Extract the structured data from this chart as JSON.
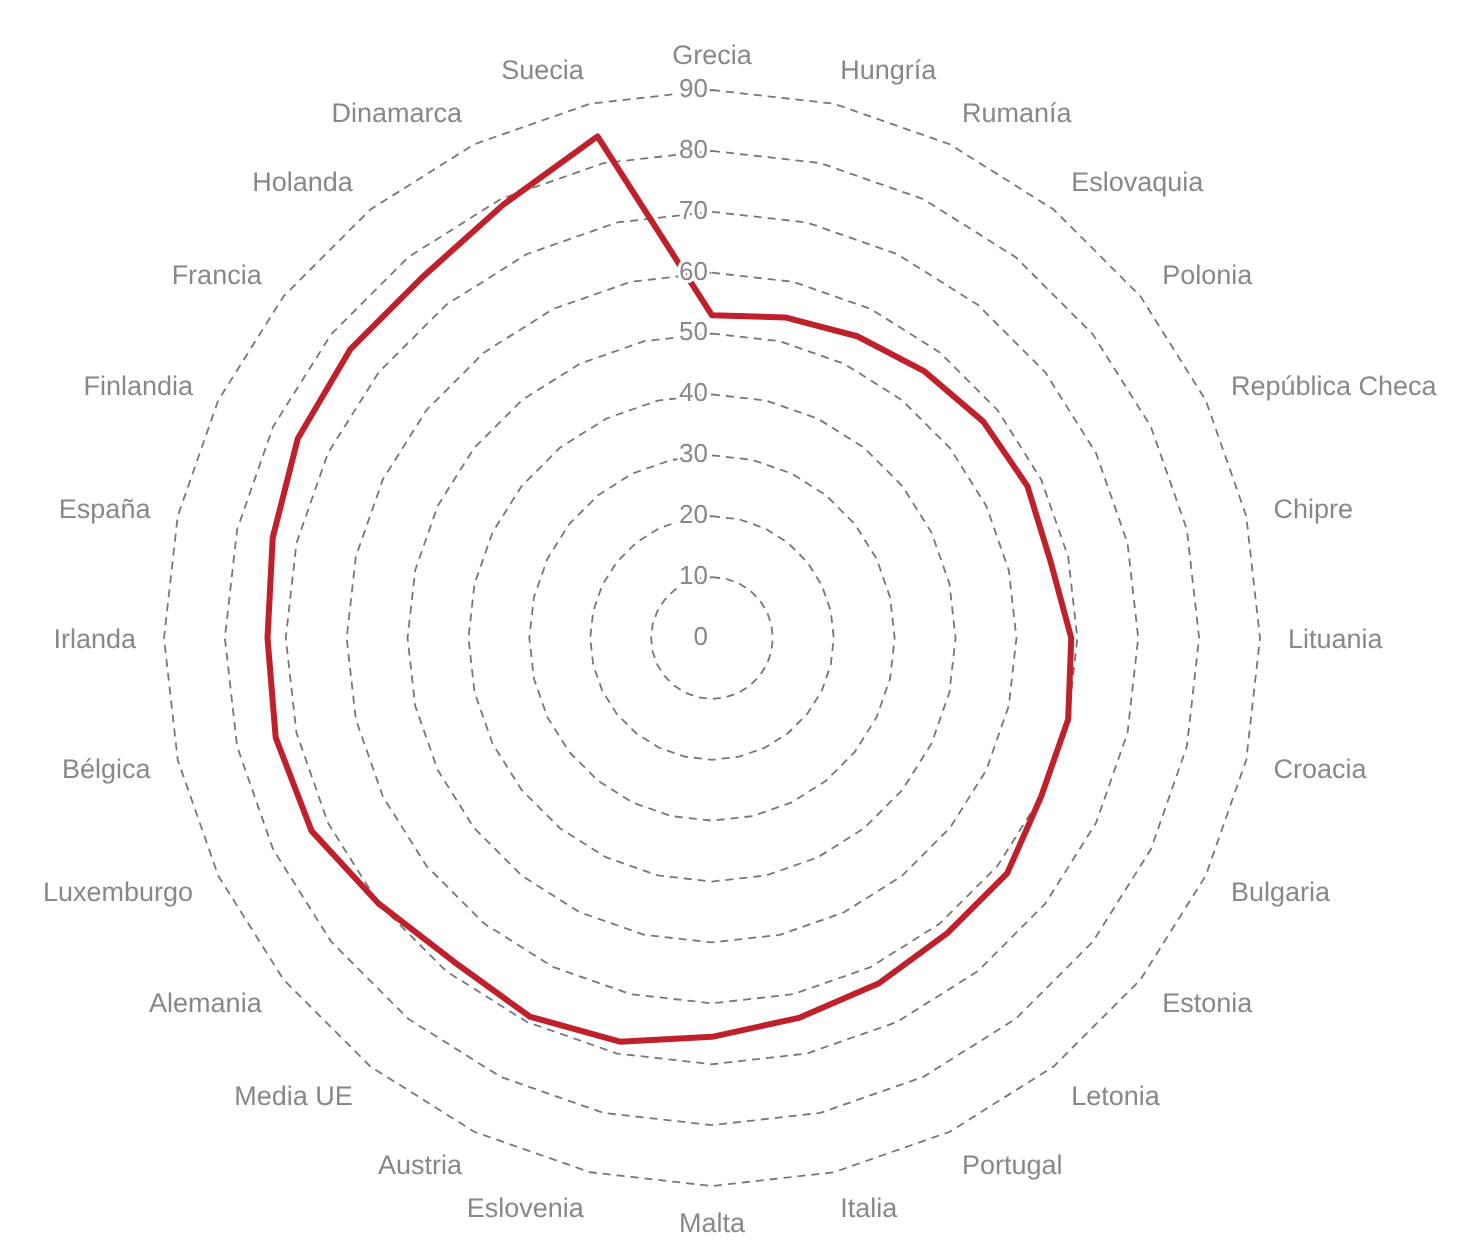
{
  "chart_data": {
    "type": "radar",
    "categories": [
      "Grecia",
      "Hungría",
      "Rumanía",
      "Eslovaquia",
      "Polonia",
      "República Checa",
      "Chipre",
      "Lituania",
      "Croacia",
      "Bulgaria",
      "Estonia",
      "Letonia",
      "Portugal",
      "Italia",
      "Malta",
      "Eslovenia",
      "Austria",
      "Media UE",
      "Alemania",
      "Luxemburgo",
      "Bélgica",
      "Irlanda",
      "España",
      "Finlandia",
      "Francia",
      "Holanda",
      "Dinamarca",
      "Suecia"
    ],
    "series": [
      {
        "color": "#c0202a",
        "values": [
          53,
          54,
          55,
          56,
          57,
          57.5,
          57,
          59,
          60,
          60,
          62,
          62,
          63,
          64,
          65.5,
          68,
          69,
          68,
          70,
          73,
          73.5,
          73,
          74,
          75.5,
          76,
          76,
          79,
          84.5
        ]
      }
    ],
    "ylim": [
      0,
      90
    ],
    "yticks": [
      0,
      10,
      20,
      30,
      40,
      50,
      60,
      70,
      80,
      90
    ],
    "grid": true,
    "line_style": "solid",
    "marker": "none"
  }
}
